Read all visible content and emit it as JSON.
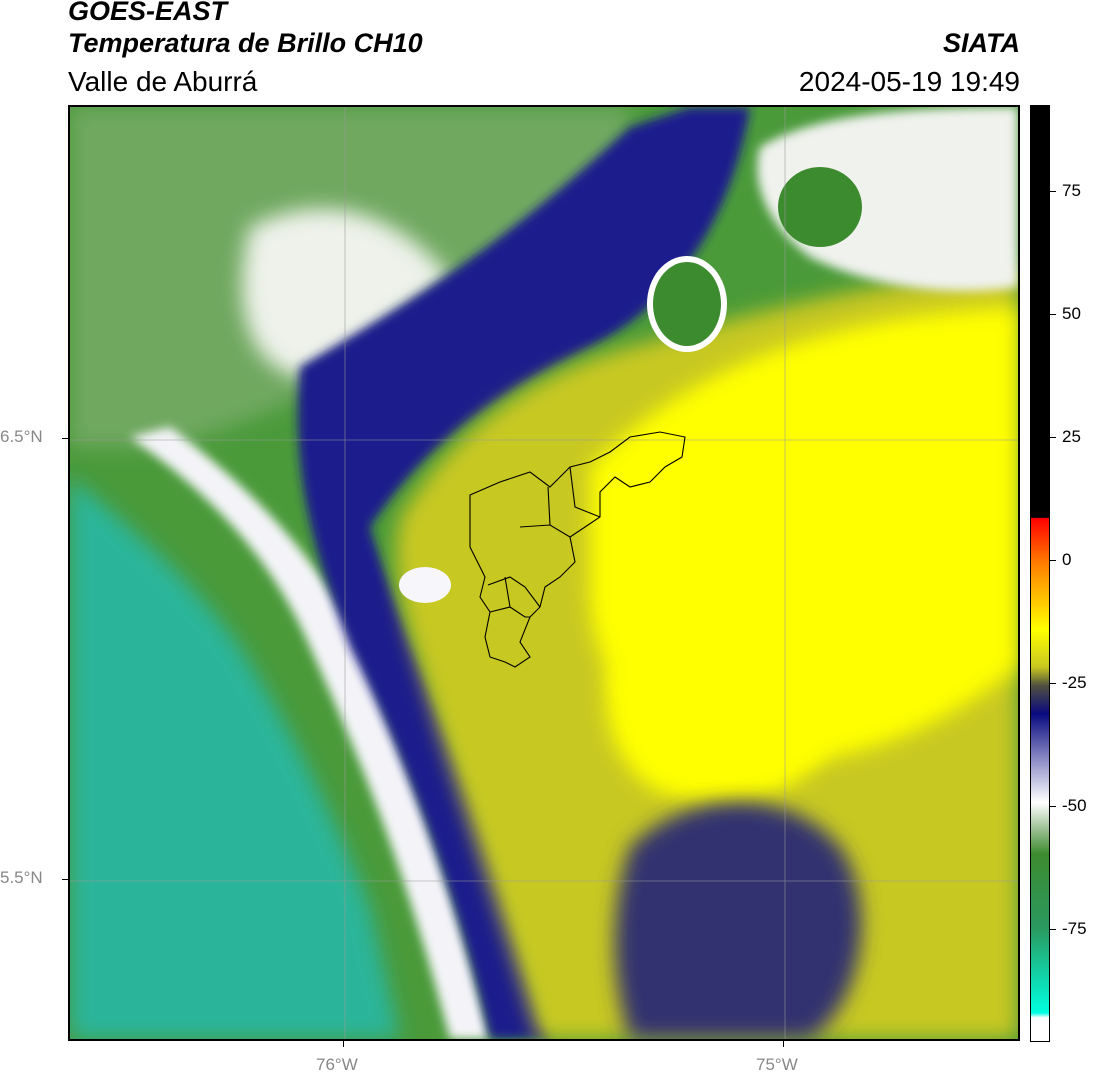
{
  "header": {
    "satellite": "GOES-EAST",
    "product": "Temperatura de Brillo CH10",
    "region": "Valle de Aburrá",
    "organization": "SIATA",
    "datetime": "2024-05-19 19:49"
  },
  "axes": {
    "lat_labels": [
      "6.5°N",
      "5.5°N"
    ],
    "lon_labels": [
      "76°W",
      "75°W"
    ],
    "lat_values": [
      6.5,
      5.5
    ],
    "lon_values": [
      -76,
      -75
    ]
  },
  "colorbar": {
    "ticks": [
      "75",
      "50",
      "25",
      "0",
      "-25",
      "-50",
      "-75"
    ],
    "tick_values": [
      75,
      50,
      25,
      0,
      -25,
      -50,
      -75
    ],
    "range": [
      -95,
      90
    ]
  },
  "colors": {
    "teal": "#17c7a8",
    "green": "#3d8b2f",
    "white": "#f2f4f0",
    "lavender": "#8e8ec8",
    "navy": "#0a0a80",
    "olive": "#b8b81a",
    "yellow": "#ffff00",
    "black": "#000000"
  }
}
